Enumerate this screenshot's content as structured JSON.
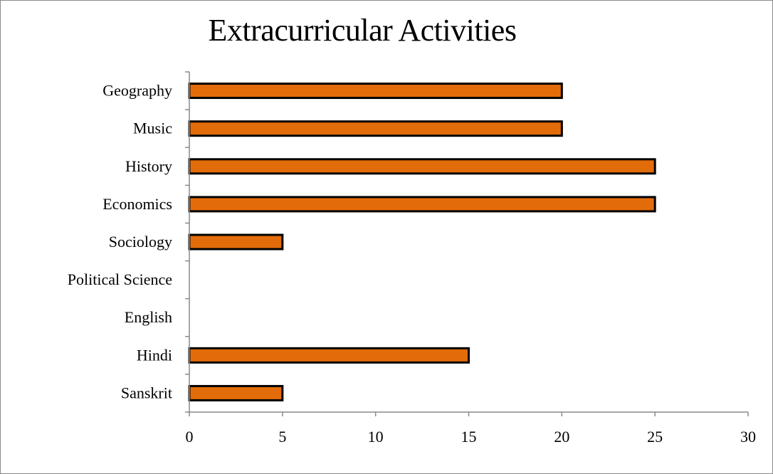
{
  "chart_data": {
    "type": "bar",
    "orientation": "horizontal",
    "title": "Extracurricular Activities",
    "xlabel": "",
    "ylabel": "",
    "categories": [
      "Geography",
      "Music",
      "History",
      "Economics",
      "Sociology",
      "Political Science",
      "English",
      "Hindi",
      "Sanskrit"
    ],
    "values": [
      20,
      20,
      25,
      25,
      5,
      0,
      0,
      15,
      5
    ],
    "xlim": [
      0,
      30
    ],
    "xticks": [
      0,
      5,
      10,
      15,
      20,
      25,
      30
    ],
    "grid": false,
    "legend": "none",
    "colors": {
      "bar_fill": "#e36c0a",
      "bar_stroke": "#000000",
      "axis": "#8a8a8a"
    }
  }
}
